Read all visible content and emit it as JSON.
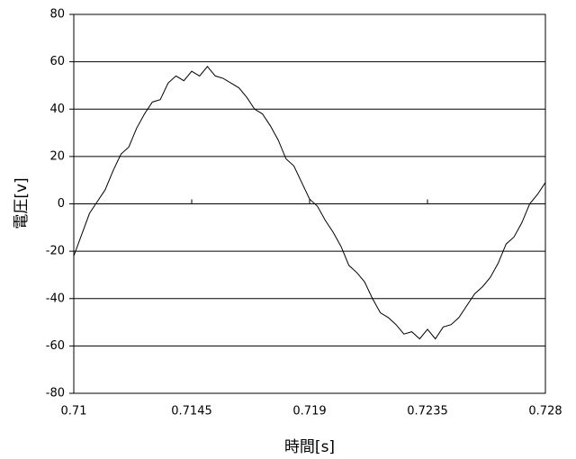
{
  "chart_data": {
    "type": "line",
    "xlabel": "時間[s]",
    "ylabel": "電圧[v]",
    "x": [
      0.71,
      0.7103,
      0.7106,
      0.7109,
      0.7112,
      0.7115,
      0.7118,
      0.7121,
      0.7124,
      0.7127,
      0.713,
      0.7133,
      0.7136,
      0.7139,
      0.7142,
      0.7145,
      0.7148,
      0.7151,
      0.7154,
      0.7157,
      0.716,
      0.7163,
      0.7166,
      0.7169,
      0.7172,
      0.7175,
      0.7178,
      0.7181,
      0.7184,
      0.7187,
      0.719,
      0.7193,
      0.7196,
      0.7199,
      0.7202,
      0.7205,
      0.7208,
      0.7211,
      0.7214,
      0.7217,
      0.722,
      0.7223,
      0.7226,
      0.7229,
      0.7232,
      0.7235,
      0.7238,
      0.7241,
      0.7244,
      0.7247,
      0.725,
      0.7253,
      0.7256,
      0.7259,
      0.7262,
      0.7265,
      0.7268,
      0.7271,
      0.7274,
      0.7277,
      0.728
    ],
    "series": [
      {
        "color": "#000000",
        "values": [
          -22,
          -13,
          -4,
          1,
          6,
          14,
          21,
          24,
          32,
          38,
          43,
          44,
          51,
          54,
          52,
          56,
          54,
          58,
          54,
          53,
          51,
          49,
          45,
          40,
          38,
          33,
          27,
          19,
          16,
          9,
          2,
          -1,
          -7,
          -12,
          -18,
          -26,
          -29,
          -33,
          -40,
          -46,
          -48,
          -51,
          -55,
          -54,
          -57,
          -53,
          -57,
          -52,
          -51,
          -48,
          -43,
          -38,
          -35,
          -31,
          -25,
          -17,
          -14,
          -8,
          0,
          4,
          9
        ]
      }
    ],
    "xlim": [
      0.71,
      0.728
    ],
    "xticks": [
      0.71,
      0.7145,
      0.719,
      0.7235,
      0.728
    ],
    "ylim": [
      -80,
      80
    ],
    "yticks": [
      -80,
      -60,
      -40,
      -20,
      0,
      20,
      40,
      60,
      80
    ],
    "grid": true
  }
}
